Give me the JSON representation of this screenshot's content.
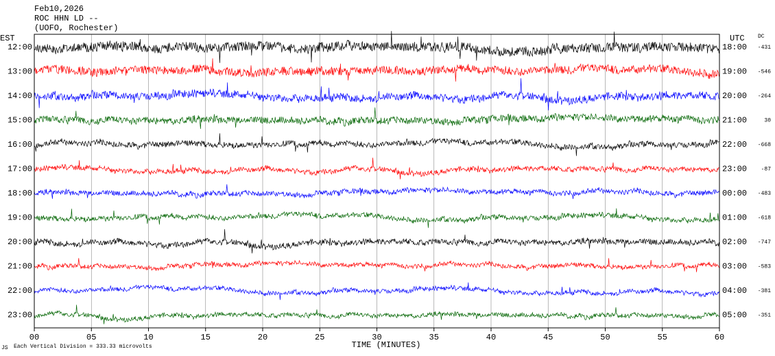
{
  "header": {
    "date": "Feb10,2026",
    "station": "ROC HHN LD --",
    "location": "(UOFO, Rochester)"
  },
  "left_axis": {
    "title": "EST",
    "labels": [
      "12:00",
      "13:00",
      "14:00",
      "15:00",
      "16:00",
      "17:00",
      "18:00",
      "19:00",
      "20:00",
      "21:00",
      "22:00",
      "23:00"
    ]
  },
  "right_axis": {
    "title": "UTC",
    "labels": [
      "18:00",
      "19:00",
      "20:00",
      "21:00",
      "22:00",
      "23:00",
      "00:00",
      "01:00",
      "02:00",
      "03:00",
      "04:00",
      "05:00"
    ]
  },
  "dc": {
    "title": "DC",
    "values": [
      "-431",
      "-546",
      "-264",
      "30",
      "-668",
      "-87",
      "-483",
      "-618",
      "-747",
      "-583",
      "-381",
      "-351"
    ]
  },
  "x_axis": {
    "title": "TIME (MINUTES)",
    "ticks": [
      "00",
      "05",
      "10",
      "15",
      "20",
      "25",
      "30",
      "35",
      "40",
      "45",
      "50",
      "55",
      "60"
    ]
  },
  "footer": {
    "mark": "JS",
    "scale": "Each Vertical Division =  333.33 microvolts"
  }
}
